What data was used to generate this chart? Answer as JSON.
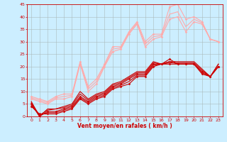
{
  "title": "",
  "xlabel": "Vent moyen/en rafales ( km/h )",
  "ylabel": "",
  "background_color": "#cceeff",
  "grid_color": "#aabbbb",
  "xlim": [
    -0.5,
    23.5
  ],
  "ylim": [
    0,
    45
  ],
  "xticks": [
    0,
    1,
    2,
    3,
    4,
    5,
    6,
    7,
    8,
    9,
    10,
    11,
    12,
    13,
    14,
    15,
    16,
    17,
    18,
    19,
    20,
    21,
    22,
    23
  ],
  "yticks": [
    0,
    5,
    10,
    15,
    20,
    25,
    30,
    35,
    40,
    45
  ],
  "lines": [
    {
      "x": [
        0,
        1,
        2,
        3,
        4,
        5,
        6,
        7,
        8,
        9,
        10,
        11,
        12,
        13,
        14,
        15,
        16,
        17,
        18,
        19,
        20,
        21,
        22,
        23
      ],
      "y": [
        4,
        1,
        1,
        1,
        2,
        3,
        7,
        5,
        7,
        8,
        11,
        12,
        13,
        16,
        16,
        20,
        21,
        23,
        21,
        21,
        21,
        17,
        16,
        20
      ],
      "color": "#cc0000",
      "linewidth": 0.8,
      "marker": "D",
      "markersize": 1.5,
      "alpha": 1.0
    },
    {
      "x": [
        0,
        1,
        2,
        3,
        4,
        5,
        6,
        7,
        8,
        9,
        10,
        11,
        12,
        13,
        14,
        15,
        16,
        17,
        18,
        19,
        20,
        21,
        22,
        23
      ],
      "y": [
        4.5,
        0.5,
        1.5,
        1.5,
        2.5,
        3.5,
        7.5,
        5.5,
        7.5,
        8.5,
        11.5,
        12.5,
        14,
        16.5,
        16.5,
        20.5,
        21,
        22,
        21,
        21,
        21,
        17.5,
        16,
        20
      ],
      "color": "#cc0000",
      "linewidth": 0.8,
      "marker": null,
      "markersize": 0,
      "alpha": 1.0
    },
    {
      "x": [
        0,
        1,
        2,
        3,
        4,
        5,
        6,
        7,
        8,
        9,
        10,
        11,
        12,
        13,
        14,
        15,
        16,
        17,
        18,
        19,
        20,
        21,
        22,
        23
      ],
      "y": [
        5,
        0,
        2,
        2,
        3,
        4,
        8,
        6,
        8,
        9,
        12,
        13,
        15,
        17,
        17,
        21,
        21,
        21,
        21,
        21,
        21,
        18,
        16,
        20
      ],
      "color": "#cc0000",
      "linewidth": 0.8,
      "marker": "D",
      "markersize": 1.5,
      "alpha": 1.0
    },
    {
      "x": [
        0,
        1,
        2,
        3,
        4,
        5,
        6,
        7,
        8,
        9,
        10,
        11,
        12,
        13,
        14,
        15,
        16,
        17,
        18,
        19,
        20,
        21,
        22,
        23
      ],
      "y": [
        5.5,
        0.5,
        2.5,
        3,
        3.5,
        4.5,
        9,
        6.5,
        8.5,
        9.5,
        12.5,
        13.5,
        15.5,
        17.5,
        17.5,
        21.5,
        21,
        21.5,
        21.5,
        21.5,
        21.5,
        18.5,
        16,
        21
      ],
      "color": "#cc0000",
      "linewidth": 0.8,
      "marker": null,
      "markersize": 0,
      "alpha": 1.0
    },
    {
      "x": [
        0,
        1,
        2,
        3,
        4,
        5,
        6,
        7,
        8,
        9,
        10,
        11,
        12,
        13,
        14,
        15,
        16,
        17,
        18,
        19,
        20,
        21,
        22,
        23
      ],
      "y": [
        6,
        0,
        3,
        3,
        4,
        5,
        10,
        7,
        9,
        10,
        13,
        14,
        16,
        18,
        18,
        22,
        21,
        22,
        22,
        22,
        22,
        19,
        16,
        21
      ],
      "color": "#cc0000",
      "linewidth": 0.8,
      "marker": null,
      "markersize": 0,
      "alpha": 1.0
    },
    {
      "x": [
        0,
        1,
        2,
        3,
        4,
        5,
        6,
        7,
        8,
        9,
        10,
        11,
        12,
        13,
        14,
        15,
        16,
        17,
        18,
        19,
        20,
        21,
        22,
        23
      ],
      "y": [
        7,
        6,
        5,
        7,
        7,
        8,
        21,
        10,
        13,
        20,
        26,
        27,
        33,
        37,
        28,
        31,
        32,
        39,
        40,
        34,
        38,
        37,
        31,
        30
      ],
      "color": "#ffaaaa",
      "linewidth": 0.8,
      "marker": "D",
      "markersize": 1.5,
      "alpha": 1.0
    },
    {
      "x": [
        0,
        1,
        2,
        3,
        4,
        5,
        6,
        7,
        8,
        9,
        10,
        11,
        12,
        13,
        14,
        15,
        16,
        17,
        18,
        19,
        20,
        21,
        22,
        23
      ],
      "y": [
        7.5,
        6.5,
        5.5,
        7.5,
        8,
        8.5,
        21.5,
        11,
        14,
        20.5,
        27,
        27.5,
        33.5,
        37.5,
        29,
        32,
        32.5,
        41,
        42,
        36,
        39,
        37.5,
        31,
        30
      ],
      "color": "#ffaaaa",
      "linewidth": 0.8,
      "marker": null,
      "markersize": 0,
      "alpha": 1.0
    },
    {
      "x": [
        0,
        1,
        2,
        3,
        4,
        5,
        6,
        7,
        8,
        9,
        10,
        11,
        12,
        13,
        14,
        15,
        16,
        17,
        18,
        19,
        20,
        21,
        22,
        23
      ],
      "y": [
        8,
        7,
        6,
        8,
        9,
        9,
        22,
        12,
        15,
        21,
        28,
        28,
        34,
        38,
        30,
        33,
        33,
        44,
        45,
        39,
        40,
        38,
        31,
        30
      ],
      "color": "#ffaaaa",
      "linewidth": 0.8,
      "marker": "D",
      "markersize": 1.5,
      "alpha": 1.0
    }
  ]
}
